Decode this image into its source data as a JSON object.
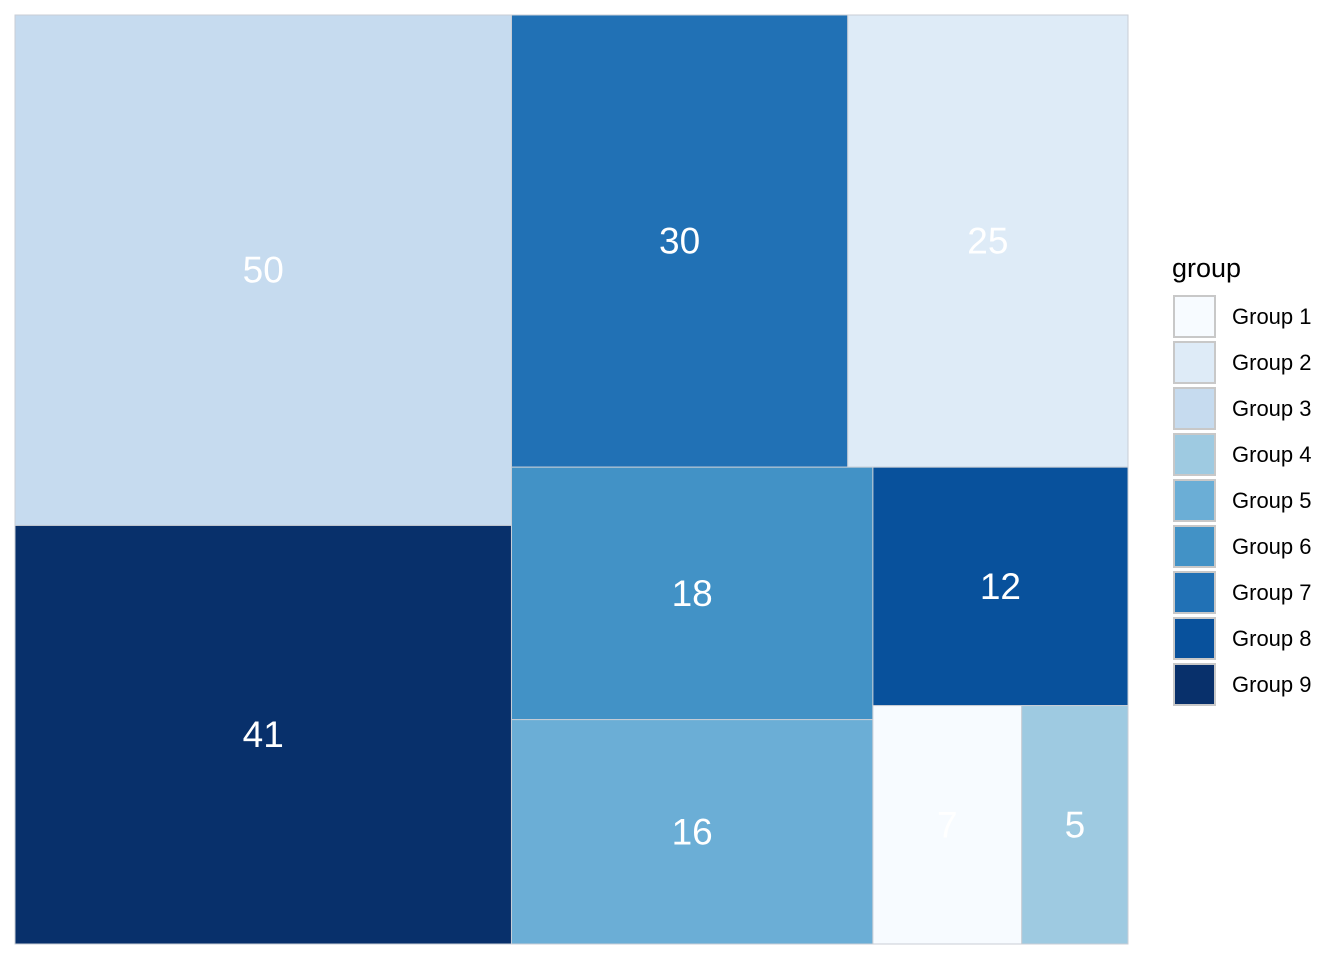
{
  "chart_data": {
    "type": "treemap",
    "legend": {
      "title": "group",
      "placement": "right"
    },
    "groups": [
      {
        "name": "Group 1",
        "color": "#f7fbff"
      },
      {
        "name": "Group 2",
        "color": "#deebf7"
      },
      {
        "name": "Group 3",
        "color": "#c6dbef"
      },
      {
        "name": "Group 4",
        "color": "#9ecae1"
      },
      {
        "name": "Group 5",
        "color": "#6baed6"
      },
      {
        "name": "Group 6",
        "color": "#4292c6"
      },
      {
        "name": "Group 7",
        "color": "#2171b5"
      },
      {
        "name": "Group 8",
        "color": "#08519c"
      },
      {
        "name": "Group 9",
        "color": "#08306b"
      }
    ],
    "tiles": [
      {
        "group": "Group 3",
        "value": 50
      },
      {
        "group": "Group 9",
        "value": 41
      },
      {
        "group": "Group 7",
        "value": 30
      },
      {
        "group": "Group 2",
        "value": 25
      },
      {
        "group": "Group 6",
        "value": 18
      },
      {
        "group": "Group 5",
        "value": 16
      },
      {
        "group": "Group 8",
        "value": 12
      },
      {
        "group": "Group 1",
        "value": 7
      },
      {
        "group": "Group 4",
        "value": 5
      }
    ]
  }
}
